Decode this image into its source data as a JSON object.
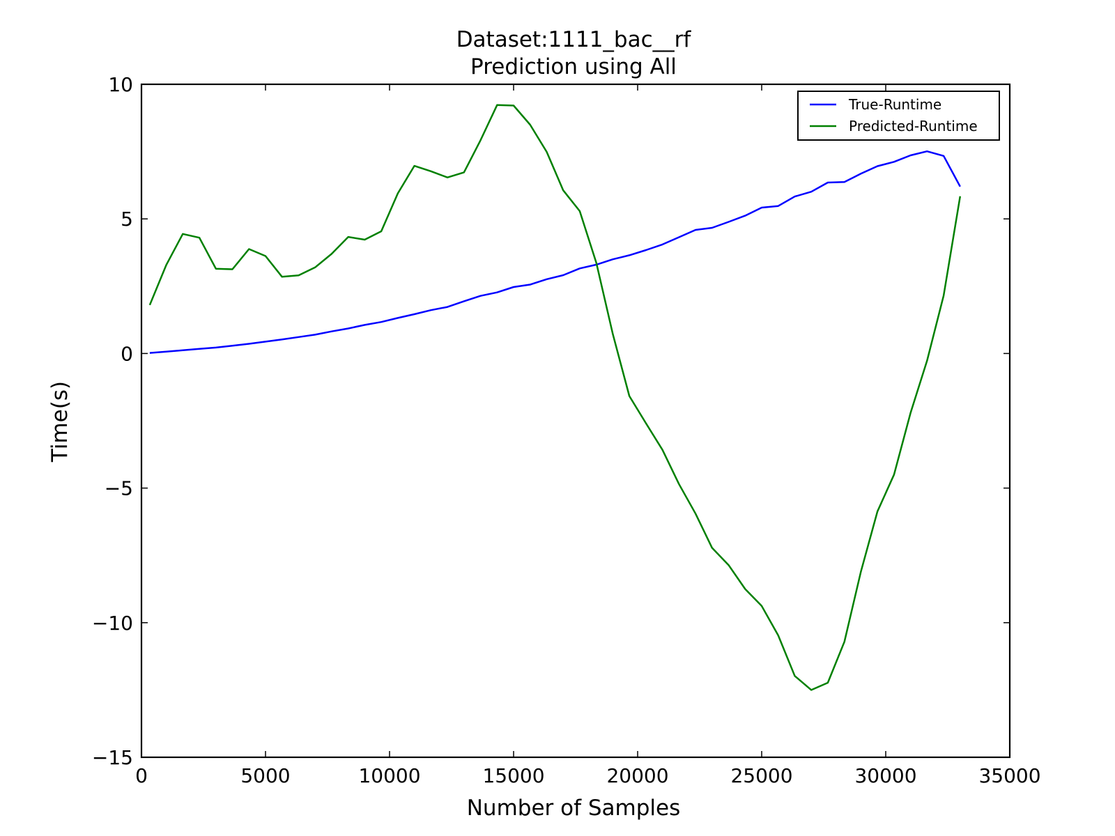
{
  "chart_data": {
    "type": "line",
    "title": [
      "Dataset:1111_bac__rf",
      "Prediction using All"
    ],
    "xlabel": "Number of Samples",
    "ylabel": "Time(s)",
    "xlim": [
      0,
      35000
    ],
    "ylim": [
      -15,
      10
    ],
    "xticks": [
      0,
      5000,
      10000,
      15000,
      20000,
      25000,
      30000,
      35000
    ],
    "xtick_labels": [
      "0",
      "5000",
      "10000",
      "15000",
      "20000",
      "25000",
      "30000",
      "35000"
    ],
    "yticks": [
      -15,
      -10,
      -5,
      0,
      5,
      10
    ],
    "ytick_labels": [
      "−15",
      "−10",
      "−5",
      "0",
      "5",
      "10"
    ],
    "grid": false,
    "legend_position": "upper-right",
    "x": [
      333,
      1000,
      1667,
      2333,
      3000,
      3667,
      4333,
      5000,
      5667,
      6333,
      7000,
      7667,
      8333,
      9000,
      9667,
      10333,
      11000,
      11667,
      12333,
      13000,
      13667,
      14333,
      15000,
      15667,
      16333,
      17000,
      17667,
      18333,
      19000,
      19667,
      20333,
      21000,
      21667,
      22333,
      23000,
      23667,
      24333,
      25000,
      25667,
      26333,
      27000,
      27667,
      28333,
      29000,
      29667,
      30333,
      31000,
      31667,
      32333,
      33000
    ],
    "series": [
      {
        "name": "True-Runtime",
        "color": "#0000ff",
        "values": [
          0.02,
          0.07,
          0.12,
          0.17,
          0.22,
          0.29,
          0.36,
          0.44,
          0.52,
          0.61,
          0.7,
          0.82,
          0.93,
          1.06,
          1.17,
          1.32,
          1.46,
          1.61,
          1.73,
          1.94,
          2.14,
          2.27,
          2.47,
          2.56,
          2.76,
          2.91,
          3.16,
          3.3,
          3.5,
          3.65,
          3.84,
          4.05,
          4.32,
          4.59,
          4.67,
          4.89,
          5.12,
          5.42,
          5.48,
          5.83,
          6.01,
          6.35,
          6.37,
          6.68,
          6.96,
          7.12,
          7.36,
          7.51,
          7.34,
          6.2
        ]
      },
      {
        "name": "Predicted-Runtime",
        "color": "#008000",
        "values": [
          1.8,
          3.29,
          4.44,
          4.3,
          3.15,
          3.13,
          3.88,
          3.62,
          2.85,
          2.9,
          3.2,
          3.7,
          4.33,
          4.23,
          4.54,
          5.95,
          6.97,
          6.77,
          6.54,
          6.73,
          7.92,
          9.23,
          9.21,
          8.5,
          7.49,
          6.06,
          5.29,
          3.37,
          0.72,
          -1.58,
          -2.59,
          -3.58,
          -4.85,
          -5.95,
          -7.22,
          -7.86,
          -8.75,
          -9.38,
          -10.47,
          -11.98,
          -12.5,
          -12.23,
          -10.71,
          -8.1,
          -5.87,
          -4.5,
          -2.21,
          -0.27,
          2.15,
          5.84
        ]
      }
    ]
  }
}
